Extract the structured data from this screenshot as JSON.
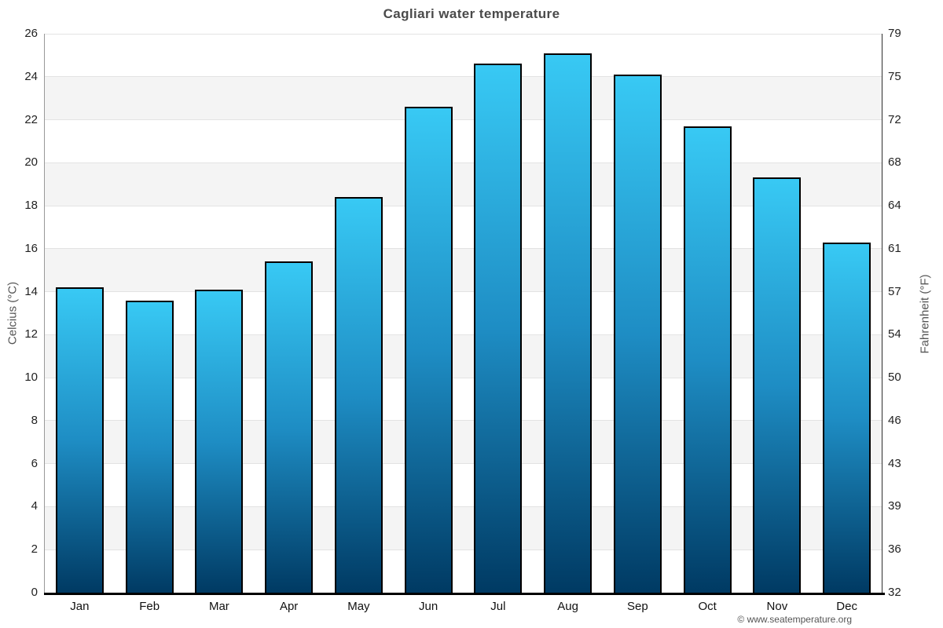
{
  "watermark": "© www.seatemperature.org",
  "chart_data": {
    "type": "bar",
    "title": "Cagliari water temperature",
    "categories": [
      "Jan",
      "Feb",
      "Mar",
      "Apr",
      "May",
      "Jun",
      "Jul",
      "Aug",
      "Sep",
      "Oct",
      "Nov",
      "Dec"
    ],
    "values": [
      14.2,
      13.6,
      14.1,
      15.4,
      18.4,
      22.6,
      24.6,
      25.1,
      24.1,
      21.7,
      19.3,
      16.3
    ],
    "ylabel_left": "Celcius (°C)",
    "ylabel_right": "Fahrenheit (°F)",
    "ylim_left": [
      0,
      26
    ],
    "ylim_right": [
      32,
      79
    ],
    "celsius_ticks": [
      26,
      24,
      22,
      20,
      18,
      16,
      14,
      12,
      10,
      8,
      6,
      4,
      2,
      0
    ],
    "fahrenheit_ticks": [
      79,
      75,
      72,
      68,
      64,
      61,
      57,
      54,
      50,
      46,
      43,
      39,
      36,
      32
    ],
    "legend": "none",
    "grid": "horizontal",
    "band_colors": [
      "#FFFFFF",
      "#F4F4F4"
    ],
    "gridline_color": "#E3E3E3",
    "bar_gradient": [
      "#38C9F4",
      "#1E8DC4",
      "#003A63"
    ],
    "bar_border_color": "#000000"
  }
}
